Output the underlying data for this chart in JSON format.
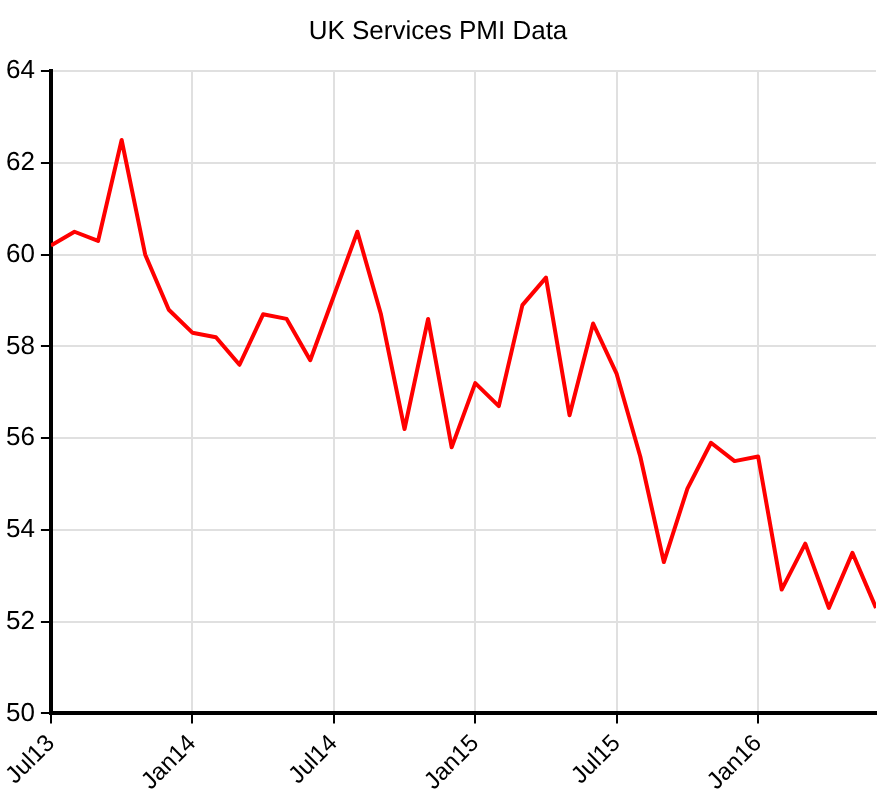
{
  "chart_data": {
    "type": "line",
    "title": "UK Services PMI Data",
    "x": [
      "2013-07",
      "2013-08",
      "2013-09",
      "2013-10",
      "2013-11",
      "2013-12",
      "2014-01",
      "2014-02",
      "2014-03",
      "2014-04",
      "2014-05",
      "2014-06",
      "2014-07",
      "2014-08",
      "2014-09",
      "2014-10",
      "2014-11",
      "2014-12",
      "2015-01",
      "2015-02",
      "2015-03",
      "2015-04",
      "2015-05",
      "2015-06",
      "2015-07",
      "2015-08",
      "2015-09",
      "2015-10",
      "2015-11",
      "2015-12",
      "2016-01",
      "2016-02",
      "2016-03",
      "2016-04",
      "2016-05",
      "2016-06"
    ],
    "series": [
      {
        "color": "#ff0000",
        "values": [
          60.2,
          60.5,
          60.3,
          62.5,
          60.0,
          58.8,
          58.3,
          58.2,
          57.6,
          58.7,
          58.6,
          57.7,
          59.1,
          60.5,
          58.7,
          56.2,
          58.6,
          55.8,
          57.2,
          56.7,
          58.9,
          59.5,
          56.5,
          58.5,
          57.4,
          55.6,
          53.3,
          54.9,
          55.9,
          55.5,
          55.6,
          52.7,
          53.7,
          52.3,
          53.5,
          52.3
        ]
      }
    ],
    "xlim": [
      "2013-07",
      "2016-06"
    ],
    "xticks": [
      {
        "value": "2013-07",
        "label": "Jul13"
      },
      {
        "value": "2014-01",
        "label": "Jan14"
      },
      {
        "value": "2014-07",
        "label": "Jul14"
      },
      {
        "value": "2015-01",
        "label": "Jan15"
      },
      {
        "value": "2015-07",
        "label": "Jul15"
      },
      {
        "value": "2016-01",
        "label": "Jan16"
      }
    ],
    "ylim": [
      50,
      64
    ],
    "yticks": [
      50,
      52,
      54,
      56,
      58,
      60,
      62,
      64
    ],
    "grid": true,
    "legend": false,
    "marker": "none",
    "line_style": "solid"
  }
}
